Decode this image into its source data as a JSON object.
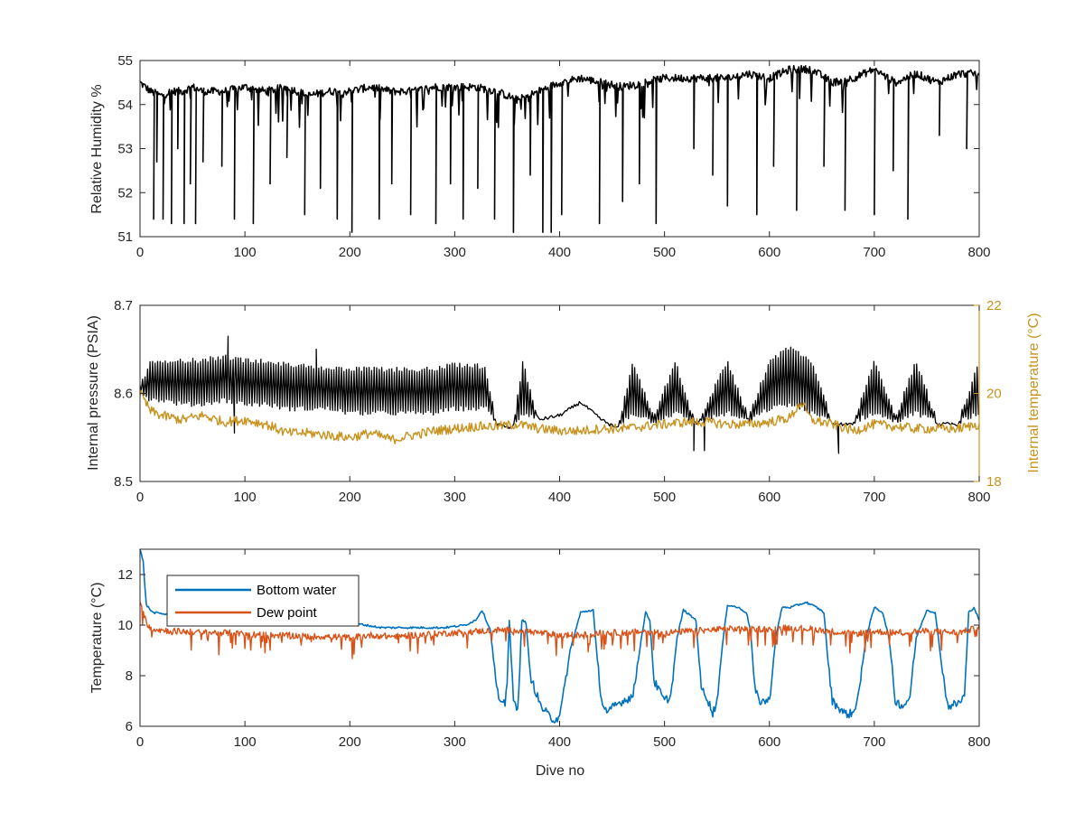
{
  "colors": {
    "axis": "#262626",
    "black_series": "#000000",
    "internal_temperature": "#C7931E",
    "bottom_water": "#0072BD",
    "dew_point": "#D95319"
  },
  "chart_data": [
    {
      "type": "line",
      "title": "",
      "xlabel": "",
      "ylabel": "Relative Humidity %",
      "xlim": [
        0,
        800
      ],
      "ylim": [
        51,
        55
      ],
      "xticks": [
        "0",
        "100",
        "200",
        "300",
        "400",
        "500",
        "600",
        "700",
        "800"
      ],
      "yticks": [
        "51",
        "52",
        "53",
        "54",
        "55"
      ],
      "grid": false,
      "series": [
        {
          "color": "#000000",
          "x": [
            0,
            10,
            20,
            30,
            40,
            50,
            60,
            80,
            100,
            120,
            140,
            160,
            180,
            200,
            220,
            240,
            260,
            280,
            300,
            320,
            340,
            360,
            380,
            400,
            420,
            440,
            460,
            480,
            500,
            520,
            540,
            560,
            580,
            600,
            620,
            640,
            660,
            680,
            700,
            720,
            740,
            760,
            780,
            800
          ],
          "y": [
            54.5,
            54.3,
            54.2,
            54.3,
            54.3,
            54.4,
            54.3,
            54.3,
            54.4,
            54.3,
            54.4,
            54.2,
            54.3,
            54.3,
            54.4,
            54.3,
            54.3,
            54.4,
            54.4,
            54.4,
            54.3,
            54.1,
            54.3,
            54.5,
            54.6,
            54.5,
            54.4,
            54.5,
            54.6,
            54.6,
            54.6,
            54.6,
            54.7,
            54.6,
            54.8,
            54.8,
            54.5,
            54.6,
            54.8,
            54.5,
            54.7,
            54.5,
            54.7,
            54.7
          ],
          "dips": [
            {
              "x": 13,
              "y": 51.4
            },
            {
              "x": 16,
              "y": 52.7
            },
            {
              "x": 22,
              "y": 51.4
            },
            {
              "x": 30,
              "y": 51.3
            },
            {
              "x": 36,
              "y": 53.0
            },
            {
              "x": 42,
              "y": 51.3
            },
            {
              "x": 48,
              "y": 52.2
            },
            {
              "x": 53,
              "y": 51.3
            },
            {
              "x": 60,
              "y": 52.7
            },
            {
              "x": 78,
              "y": 52.6
            },
            {
              "x": 90,
              "y": 51.4
            },
            {
              "x": 108,
              "y": 51.3
            },
            {
              "x": 124,
              "y": 52.2
            },
            {
              "x": 140,
              "y": 52.8
            },
            {
              "x": 157,
              "y": 51.5
            },
            {
              "x": 172,
              "y": 52.1
            },
            {
              "x": 188,
              "y": 51.4
            },
            {
              "x": 202,
              "y": 51.1
            },
            {
              "x": 228,
              "y": 51.4
            },
            {
              "x": 240,
              "y": 52.2
            },
            {
              "x": 258,
              "y": 51.5
            },
            {
              "x": 282,
              "y": 51.3
            },
            {
              "x": 296,
              "y": 52.2
            },
            {
              "x": 308,
              "y": 51.4
            },
            {
              "x": 322,
              "y": 52.1
            },
            {
              "x": 338,
              "y": 51.4
            },
            {
              "x": 356,
              "y": 51.1
            },
            {
              "x": 372,
              "y": 52.4
            },
            {
              "x": 384,
              "y": 51.1
            },
            {
              "x": 392,
              "y": 51.1
            },
            {
              "x": 402,
              "y": 51.5
            },
            {
              "x": 438,
              "y": 51.3
            },
            {
              "x": 460,
              "y": 51.8
            },
            {
              "x": 476,
              "y": 52.2
            },
            {
              "x": 492,
              "y": 51.3
            },
            {
              "x": 528,
              "y": 53.0
            },
            {
              "x": 546,
              "y": 52.4
            },
            {
              "x": 560,
              "y": 51.7
            },
            {
              "x": 588,
              "y": 51.5
            },
            {
              "x": 604,
              "y": 52.6
            },
            {
              "x": 626,
              "y": 51.6
            },
            {
              "x": 652,
              "y": 52.6
            },
            {
              "x": 672,
              "y": 51.6
            },
            {
              "x": 700,
              "y": 51.5
            },
            {
              "x": 718,
              "y": 52.5
            },
            {
              "x": 732,
              "y": 51.4
            },
            {
              "x": 762,
              "y": 53.3
            },
            {
              "x": 788,
              "y": 53.0
            }
          ]
        }
      ]
    },
    {
      "type": "line",
      "title": "",
      "xlabel": "",
      "ylabel": "Internal pressure (PSIA)",
      "y2label": "Internal temperature (°C)",
      "xlim": [
        0,
        800
      ],
      "ylim": [
        8.5,
        8.7
      ],
      "y2lim": [
        18,
        22
      ],
      "xticks": [
        "0",
        "100",
        "200",
        "300",
        "400",
        "500",
        "600",
        "700",
        "800"
      ],
      "yticks": [
        "8.5",
        "8.6",
        "8.7"
      ],
      "y2ticks": [
        "18",
        "20",
        "22"
      ],
      "grid": false,
      "series": [
        {
          "axis": "left",
          "color": "#000000",
          "x": [
            0,
            10,
            20,
            40,
            60,
            80,
            100,
            120,
            140,
            160,
            180,
            200,
            220,
            240,
            260,
            280,
            300,
            320,
            330,
            340,
            355,
            365,
            380,
            400,
            420,
            440,
            455,
            470,
            490,
            510,
            530,
            560,
            580,
            600,
            620,
            640,
            660,
            680,
            700,
            720,
            740,
            760,
            780,
            800
          ],
          "y": [
            8.61,
            8.62,
            8.615,
            8.62,
            8.62,
            8.625,
            8.62,
            8.62,
            8.615,
            8.615,
            8.61,
            8.61,
            8.61,
            8.61,
            8.61,
            8.61,
            8.61,
            8.61,
            8.6,
            8.565,
            8.56,
            8.61,
            8.57,
            8.575,
            8.59,
            8.57,
            8.56,
            8.61,
            8.57,
            8.6,
            8.565,
            8.6,
            8.57,
            8.605,
            8.615,
            8.6,
            8.565,
            8.565,
            8.6,
            8.57,
            8.6,
            8.565,
            8.565,
            8.59
          ],
          "band_top": [
            8.61,
            8.64,
            8.64,
            8.64,
            8.64,
            8.645,
            8.64,
            8.64,
            8.635,
            8.635,
            8.63,
            8.63,
            8.63,
            8.63,
            8.63,
            8.63,
            8.635,
            8.635,
            8.63,
            8.565,
            8.56,
            8.64,
            8.57,
            8.575,
            8.59,
            8.57,
            8.56,
            8.64,
            8.575,
            8.64,
            8.565,
            8.64,
            8.575,
            8.64,
            8.655,
            8.64,
            8.57,
            8.57,
            8.64,
            8.575,
            8.64,
            8.57,
            8.57,
            8.64
          ],
          "band_bottom": [
            8.6,
            8.59,
            8.59,
            8.585,
            8.585,
            8.59,
            8.585,
            8.585,
            8.58,
            8.58,
            8.58,
            8.575,
            8.575,
            8.575,
            8.575,
            8.575,
            8.58,
            8.58,
            8.58,
            8.565,
            8.56,
            8.575,
            8.57,
            8.575,
            8.59,
            8.57,
            8.56,
            8.575,
            8.565,
            8.575,
            8.565,
            8.575,
            8.565,
            8.58,
            8.585,
            8.575,
            8.565,
            8.565,
            8.575,
            8.565,
            8.575,
            8.565,
            8.565,
            8.575
          ],
          "spikes": [
            {
              "x": 84,
              "y": 8.665
            },
            {
              "x": 90,
              "y": 8.555
            },
            {
              "x": 168,
              "y": 8.65
            },
            {
              "x": 528,
              "y": 8.535
            },
            {
              "x": 538,
              "y": 8.535
            },
            {
              "x": 666,
              "y": 8.532
            }
          ]
        },
        {
          "axis": "right",
          "color": "#C7931E",
          "x": [
            0,
            10,
            20,
            40,
            60,
            80,
            100,
            120,
            140,
            160,
            180,
            200,
            220,
            240,
            260,
            280,
            300,
            320,
            340,
            360,
            380,
            400,
            420,
            440,
            460,
            480,
            500,
            520,
            540,
            560,
            580,
            600,
            620,
            630,
            640,
            660,
            680,
            700,
            720,
            740,
            760,
            780,
            800
          ],
          "y": [
            20.0,
            19.6,
            19.5,
            19.4,
            19.5,
            19.35,
            19.4,
            19.3,
            19.1,
            19.1,
            19.05,
            19.0,
            19.1,
            18.95,
            19.05,
            19.15,
            19.2,
            19.25,
            19.25,
            19.3,
            19.2,
            19.15,
            19.15,
            19.2,
            19.2,
            19.25,
            19.3,
            19.35,
            19.35,
            19.3,
            19.3,
            19.35,
            19.45,
            19.8,
            19.4,
            19.3,
            19.15,
            19.3,
            19.25,
            19.2,
            19.2,
            19.2,
            19.3
          ]
        }
      ]
    },
    {
      "type": "line",
      "title": "",
      "xlabel": "Dive no",
      "ylabel": "Temperature (°C)",
      "xlim": [
        0,
        800
      ],
      "ylim": [
        6,
        13
      ],
      "xticks": [
        "0",
        "100",
        "200",
        "300",
        "400",
        "500",
        "600",
        "700",
        "800"
      ],
      "yticks": [
        "6",
        "8",
        "10",
        "12"
      ],
      "grid": false,
      "legend": "top-left",
      "series": [
        {
          "name": "Bottom water",
          "color": "#0072BD",
          "x": [
            0,
            3,
            6,
            12,
            30,
            60,
            100,
            150,
            200,
            230,
            260,
            290,
            310,
            320,
            326,
            334,
            340,
            344,
            348,
            350,
            352,
            356,
            360,
            364,
            368,
            372,
            382,
            392,
            398,
            402,
            410,
            420,
            432,
            436,
            440,
            446,
            452,
            460,
            470,
            478,
            482,
            486,
            490,
            500,
            506,
            512,
            518,
            530,
            535,
            540,
            546,
            550,
            556,
            560,
            570,
            578,
            582,
            586,
            590,
            600,
            606,
            612,
            620,
            635,
            645,
            652,
            656,
            660,
            672,
            680,
            686,
            692,
            700,
            708,
            714,
            720,
            728,
            734,
            740,
            750,
            758,
            764,
            770,
            780,
            786,
            790,
            795,
            800
          ],
          "y": [
            13.0,
            12.5,
            10.8,
            10.5,
            10.4,
            10.3,
            10.3,
            10.2,
            10.1,
            9.9,
            9.9,
            9.9,
            10.0,
            10.2,
            10.6,
            9.8,
            7.5,
            6.8,
            6.9,
            7.8,
            10.2,
            7.0,
            6.6,
            10.2,
            10.1,
            8.0,
            6.8,
            6.3,
            6.3,
            6.8,
            9.0,
            10.5,
            10.6,
            8.6,
            7.0,
            6.5,
            6.8,
            7.0,
            7.2,
            9.5,
            10.5,
            10.2,
            7.8,
            7.0,
            7.2,
            9.5,
            10.6,
            10.2,
            7.5,
            7.2,
            6.5,
            7.0,
            9.5,
            10.8,
            10.7,
            10.5,
            9.8,
            7.5,
            7.0,
            7.0,
            9.5,
            10.7,
            10.7,
            10.9,
            10.7,
            10.5,
            8.5,
            7.0,
            6.5,
            6.5,
            7.5,
            9.5,
            10.7,
            10.5,
            9.5,
            7.0,
            6.8,
            7.2,
            9.5,
            10.6,
            10.5,
            8.5,
            6.8,
            6.9,
            7.2,
            10.5,
            10.7,
            10.2
          ]
        },
        {
          "name": "Dew point",
          "color": "#D95319",
          "x": [
            0,
            3,
            6,
            10,
            20,
            40,
            60,
            80,
            100,
            120,
            140,
            160,
            180,
            200,
            220,
            240,
            260,
            280,
            300,
            320,
            340,
            360,
            380,
            400,
            420,
            440,
            460,
            480,
            500,
            520,
            540,
            560,
            580,
            600,
            620,
            640,
            660,
            680,
            700,
            720,
            740,
            760,
            780,
            800
          ],
          "y": [
            10.8,
            10.5,
            10.1,
            9.9,
            9.8,
            9.75,
            9.7,
            9.7,
            9.65,
            9.6,
            9.6,
            9.55,
            9.55,
            9.5,
            9.6,
            9.55,
            9.6,
            9.65,
            9.7,
            9.75,
            9.8,
            9.8,
            9.7,
            9.6,
            9.6,
            9.7,
            9.7,
            9.75,
            9.7,
            9.75,
            9.8,
            9.85,
            9.85,
            9.85,
            9.9,
            9.85,
            9.75,
            9.65,
            9.75,
            9.7,
            9.75,
            9.75,
            9.7,
            9.9
          ],
          "noise": 0.55
        }
      ]
    }
  ]
}
